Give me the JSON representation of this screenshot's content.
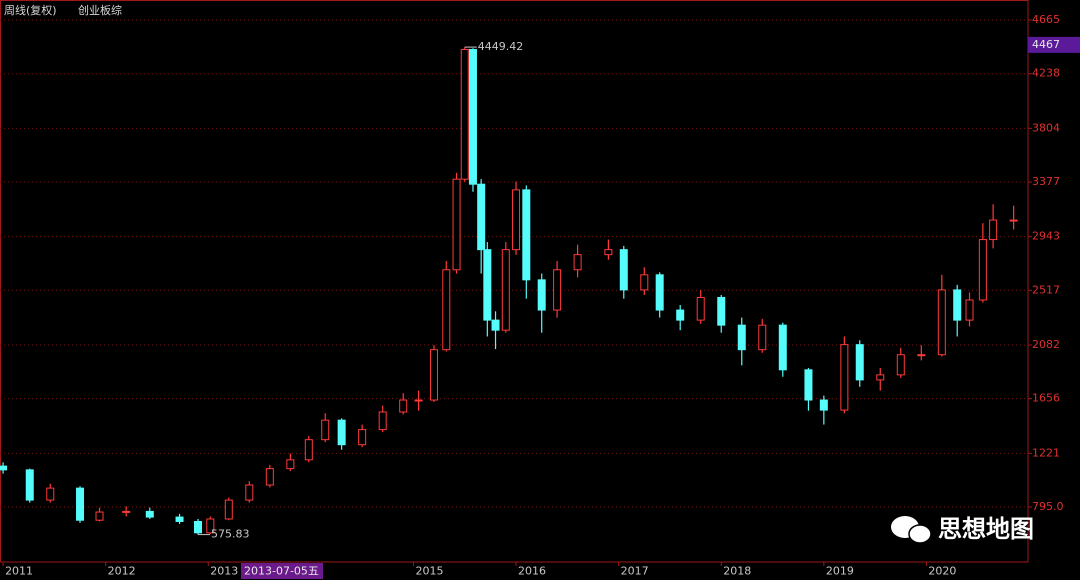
{
  "chart_data": {
    "type": "candlestick",
    "title": "周线(复权)",
    "subtitle": "创业板综",
    "watermark": "思想地图",
    "x": [
      2011.0,
      2011.26,
      2011.46,
      2011.75,
      2011.94,
      2012.2,
      2012.43,
      2012.72,
      2012.9,
      2013.02,
      2013.2,
      2013.4,
      2013.6,
      2013.8,
      2013.98,
      2014.14,
      2014.3,
      2014.5,
      2014.7,
      2014.9,
      2015.05,
      2015.2,
      2015.32,
      2015.42,
      2015.5,
      2015.58,
      2015.66,
      2015.72,
      2015.8,
      2015.9,
      2016.0,
      2016.1,
      2016.25,
      2016.4,
      2016.6,
      2016.9,
      2017.05,
      2017.25,
      2017.4,
      2017.6,
      2017.8,
      2018.0,
      2018.2,
      2018.4,
      2018.6,
      2018.85,
      2019.0,
      2019.2,
      2019.35,
      2019.55,
      2019.75,
      2019.95,
      2020.15,
      2020.3,
      2020.42,
      2020.55,
      2020.65,
      2020.85
    ],
    "open": [
      1120,
      1090,
      850,
      945,
      690,
      755,
      760,
      715,
      680,
      590,
      700,
      850,
      970,
      1100,
      1170,
      1330,
      1485,
      1290,
      1410,
      1550,
      1645,
      1645,
      2045,
      2680,
      3400,
      4430,
      3360,
      2840,
      2280,
      2200,
      2840,
      3315,
      2600,
      2360,
      2680,
      2800,
      2840,
      2520,
      2640,
      2360,
      2280,
      2460,
      2240,
      2045,
      2240,
      1885,
      1645,
      1565,
      2085,
      1805,
      1845,
      2005,
      2005,
      2520,
      2280,
      2440,
      2920,
      3075
    ],
    "high": [
      1150,
      1100,
      980,
      960,
      790,
      800,
      790,
      740,
      700,
      720,
      870,
      1000,
      1130,
      1220,
      1360,
      1540,
      1500,
      1450,
      1600,
      1700,
      1720,
      2080,
      2750,
      3450,
      4449,
      4440,
      3400,
      2900,
      2350,
      2900,
      3380,
      3350,
      2650,
      2750,
      2880,
      2920,
      2870,
      2700,
      2660,
      2400,
      2520,
      2480,
      2300,
      2290,
      2260,
      1900,
      1680,
      2150,
      2120,
      1900,
      2060,
      2080,
      2640,
      2560,
      2500,
      3050,
      3200,
      3190
    ],
    "low": [
      1060,
      830,
      830,
      670,
      680,
      720,
      700,
      660,
      576,
      580,
      690,
      830,
      950,
      1080,
      1150,
      1310,
      1250,
      1270,
      1390,
      1530,
      1560,
      1630,
      2030,
      2650,
      3380,
      3300,
      2650,
      2150,
      2050,
      2180,
      2800,
      2450,
      2180,
      2300,
      2620,
      2760,
      2450,
      2480,
      2300,
      2200,
      2250,
      2180,
      1920,
      2020,
      1830,
      1560,
      1450,
      1540,
      1750,
      1720,
      1820,
      1960,
      1990,
      2150,
      2230,
      2420,
      2850,
      3000
    ],
    "close": [
      1090,
      850,
      945,
      690,
      755,
      760,
      715,
      680,
      590,
      700,
      850,
      970,
      1100,
      1170,
      1330,
      1485,
      1290,
      1410,
      1550,
      1645,
      1645,
      2045,
      2680,
      3400,
      4430,
      3360,
      2840,
      2280,
      2200,
      2840,
      3315,
      2600,
      2360,
      2680,
      2800,
      2840,
      2520,
      2640,
      2360,
      2280,
      2460,
      2240,
      2045,
      2240,
      1885,
      1645,
      1565,
      2085,
      1805,
      1845,
      2005,
      2005,
      2520,
      2280,
      2440,
      2920,
      3075,
      3075
    ],
    "up_color": "#ff3a3a",
    "down_color": "#54fcfc",
    "xlim": [
      2010.97,
      2020.99
    ],
    "xticks": [
      2011,
      2012,
      2013,
      2015,
      2016,
      2017,
      2018,
      2019,
      2020
    ],
    "ylim": [
      358,
      4760
    ],
    "yticks": [
      {
        "value": 795,
        "label": "795.0"
      },
      1221,
      1656,
      2082,
      2517,
      2943,
      3377,
      3804,
      4238,
      4665
    ],
    "grid": true,
    "high_label": 4449.42,
    "low_label": 575.83,
    "cursor_value": 4467,
    "cursor_date": "2013-07-05五"
  }
}
